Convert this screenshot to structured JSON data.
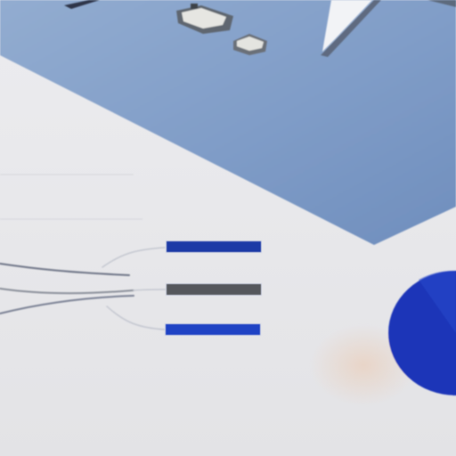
{
  "legend": {
    "item1": "",
    "item2": "",
    "item3": ""
  },
  "xaxis": {
    "ticks": [
      "",
      "",
      ""
    ]
  },
  "point_labels": [
    "",
    "",
    "",
    "",
    "",
    "",
    "",
    "",
    ""
  ],
  "colors": {
    "sky": "#7c9ac6",
    "paper": "#e9e9ec",
    "navy": "#1c3aa6",
    "gray": "#55575c",
    "royal": "#1f43c4",
    "pie": "#1a36b8"
  },
  "icons": [
    "tiny-building-photo-icon",
    "airplane-tail-icon",
    "pie-chart-icon"
  ]
}
